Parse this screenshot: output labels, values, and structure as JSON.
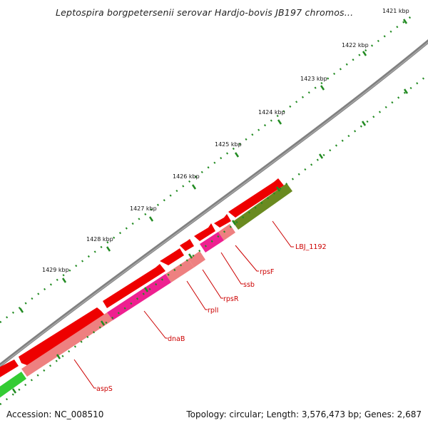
{
  "title": "Leptospira borgpetersenii serovar Hardjo-bovis JB197 chromos...",
  "footer": {
    "accession": "Accession: NC_008510",
    "summary": "Topology: circular; Length: 3,576,473 bp; Genes: 2,687"
  },
  "scale": [
    {
      "label": "1421 kbp"
    },
    {
      "label": "1422 kbp"
    },
    {
      "label": "1423 kbp"
    },
    {
      "label": "1424 kbp"
    },
    {
      "label": "1425 kbp"
    },
    {
      "label": "1426 kbp"
    },
    {
      "label": "1427 kbp"
    },
    {
      "label": "1428 kbp"
    },
    {
      "label": "1429 kbp"
    }
  ],
  "genes": [
    {
      "label": "LBJ_1192",
      "color": "#cc0000"
    },
    {
      "label": "rpsF",
      "color": "#cc0000"
    },
    {
      "label": "ssb",
      "color": "#cc0000"
    },
    {
      "label": "rpsR",
      "color": "#cc0000"
    },
    {
      "label": "rplI",
      "color": "#cc0000"
    },
    {
      "label": "dnaB",
      "color": "#cc0000"
    },
    {
      "label": "aspS",
      "color": "#cc0000"
    }
  ],
  "colors": {
    "backbone": "#808080",
    "forward_feature": "#ee0000",
    "cog_salmon": "#ee8080",
    "cog_magenta": "#ee2090",
    "cog_olive": "#6a8a20",
    "cog_green": "#33cc33",
    "tick": "#228b22",
    "label_line": "#cc0000"
  }
}
